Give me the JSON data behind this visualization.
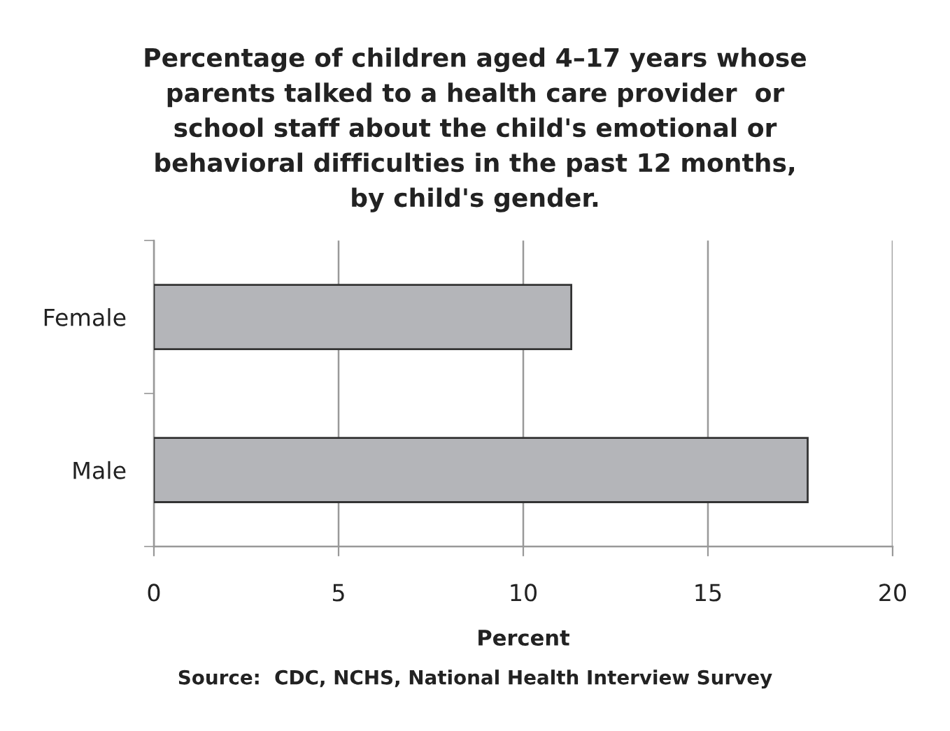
{
  "chart_data": {
    "type": "bar",
    "orientation": "horizontal",
    "title": "Percentage of children aged 4–17 years whose\nparents talked to a health care provider  or\nschool staff about the child's emotional or\nbehavioral difficulties in the past 12 months,\nby child's gender.",
    "xlabel": "Percent",
    "categories": [
      "Female",
      "Male"
    ],
    "values": [
      11.3,
      17.7
    ],
    "color": "#b4b5b9",
    "xlim": [
      0,
      20
    ],
    "xticks": [
      0,
      5,
      10,
      15,
      20
    ],
    "grid": "x",
    "legend": false,
    "annotations": [
      "Source:  CDC, NCHS, National Health Interview Survey"
    ]
  }
}
